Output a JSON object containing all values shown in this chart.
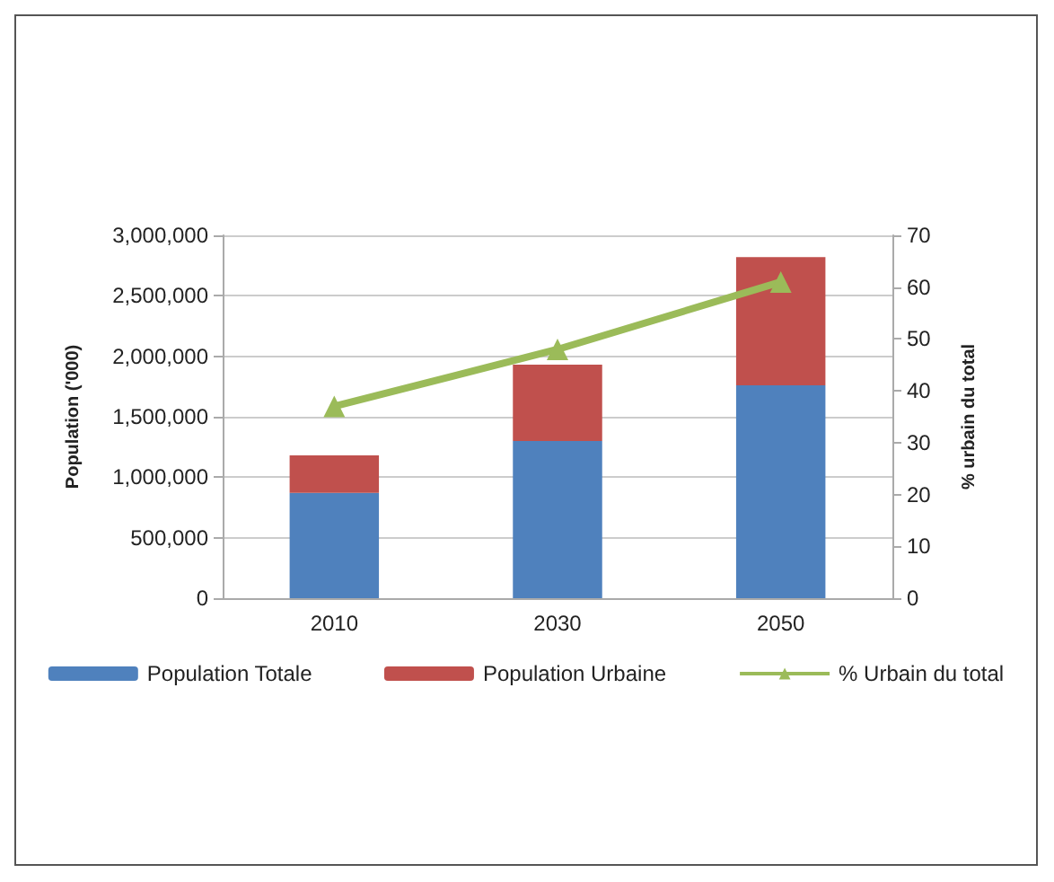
{
  "chart_data": {
    "type": "bar",
    "stacked": true,
    "categories": [
      "2010",
      "2030",
      "2050"
    ],
    "ylabel": "Population ('000)",
    "y2label": "% urbain du total",
    "ylim": [
      0,
      3000000
    ],
    "yticks": [
      0,
      {
        "value": 500000,
        "label": "500,000"
      },
      {
        "value": 1000000,
        "label": "1,000,000"
      },
      {
        "value": 1500000,
        "label": "1,500,000"
      },
      {
        "value": 2000000,
        "label": "2,000,000"
      },
      {
        "value": 2500000,
        "label": "2,500,000"
      },
      {
        "value": 3000000,
        "label": "3,000,000"
      }
    ],
    "y2lim": [
      0,
      70
    ],
    "y2ticks": [
      0,
      10,
      20,
      30,
      40,
      50,
      60,
      70
    ],
    "series": [
      {
        "name": "Population Totale",
        "color": "#4f81bd",
        "values": [
          870000,
          1300000,
          1760000
        ]
      },
      {
        "name": "Population Urbaine",
        "color": "#c0504d",
        "values": [
          310000,
          630000,
          1060000
        ]
      },
      {
        "name": "% Urbain du total",
        "type": "line",
        "axis": "y2",
        "color": "#9bbb59",
        "values": [
          37,
          48,
          61
        ],
        "marker": "triangle"
      }
    ],
    "grid": "y",
    "legend": "bottom"
  }
}
